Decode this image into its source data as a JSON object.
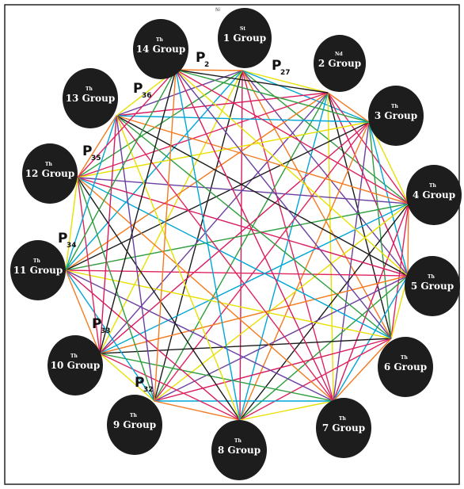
{
  "top_mark": "Ni",
  "line_colors": [
    "#1a1a1a",
    "#e8e000",
    "#00a6d6",
    "#2e9e3e",
    "#6b3fa0",
    "#f47b20",
    "#e0245e",
    "#d81b60"
  ],
  "nodes": [
    {
      "sup": "St",
      "label": "1 Group"
    },
    {
      "sup": "Nd",
      "label": "2 Group"
    },
    {
      "sup": "Th",
      "label": "3 Group"
    },
    {
      "sup": "Th",
      "label": "4 Group"
    },
    {
      "sup": "Th",
      "label": "5 Group"
    },
    {
      "sup": "Th",
      "label": "6 Group"
    },
    {
      "sup": "Th",
      "label": "7 Group"
    },
    {
      "sup": "Th",
      "label": "8 Group"
    },
    {
      "sup": "Th",
      "label": "9 Group"
    },
    {
      "sup": "Th",
      "label": "10 Group"
    },
    {
      "sup": "Th",
      "label": "11 Group"
    },
    {
      "sup": "Th",
      "label": "12 Group"
    },
    {
      "sup": "Th",
      "label": "13 Group"
    },
    {
      "sup": "Th",
      "label": "14 Group"
    }
  ],
  "path_labels": [
    {
      "main": "P",
      "sub": "2"
    },
    {
      "main": "P",
      "sub": "27"
    },
    {
      "main": "P",
      "sub": "36"
    },
    {
      "main": "P",
      "sub": "35"
    },
    {
      "main": "P",
      "sub": "34"
    },
    {
      "main": "P",
      "sub": "33"
    },
    {
      "main": "P",
      "sub": "32"
    }
  ]
}
